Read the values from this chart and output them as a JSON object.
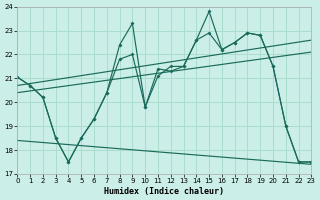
{
  "xlabel": "Humidex (Indice chaleur)",
  "bg_color": "#cceee8",
  "grid_color": "#aaddcc",
  "line_color": "#1a6b5a",
  "xlim": [
    0,
    23
  ],
  "ylim": [
    17,
    24
  ],
  "yticks": [
    17,
    18,
    19,
    20,
    21,
    22,
    23,
    24
  ],
  "xticks": [
    0,
    1,
    2,
    3,
    4,
    5,
    6,
    7,
    8,
    9,
    10,
    11,
    12,
    13,
    14,
    15,
    16,
    17,
    18,
    19,
    20,
    21,
    22,
    23
  ],
  "curve1_x": [
    0,
    1,
    2,
    3,
    4,
    5,
    6,
    7,
    8,
    9,
    10,
    11,
    12,
    13,
    14,
    15,
    16,
    17,
    18,
    19,
    20,
    21,
    22,
    23
  ],
  "curve1_y": [
    21.05,
    20.7,
    20.2,
    18.5,
    17.5,
    18.5,
    19.3,
    20.4,
    22.4,
    23.3,
    19.8,
    21.4,
    21.3,
    21.5,
    22.6,
    23.8,
    22.2,
    22.5,
    22.9,
    22.8,
    21.5,
    19.0,
    17.5,
    17.5
  ],
  "curve2_x": [
    0,
    1,
    2,
    3,
    4,
    5,
    6,
    7,
    8,
    9,
    10,
    11,
    12,
    13,
    14,
    15,
    16,
    17,
    18,
    19,
    20,
    21,
    22,
    23
  ],
  "curve2_y": [
    21.05,
    20.7,
    20.2,
    18.5,
    17.5,
    18.5,
    19.3,
    20.4,
    21.8,
    22.0,
    19.8,
    21.1,
    21.5,
    21.5,
    22.6,
    22.9,
    22.2,
    22.5,
    22.9,
    22.8,
    21.5,
    19.0,
    17.5,
    17.5
  ],
  "trend1_x": [
    0,
    23
  ],
  "trend1_y": [
    20.7,
    22.6
  ],
  "trend2_x": [
    0,
    23
  ],
  "trend2_y": [
    20.4,
    22.1
  ],
  "trend3_x": [
    0,
    23
  ],
  "trend3_y": [
    18.4,
    17.4
  ]
}
